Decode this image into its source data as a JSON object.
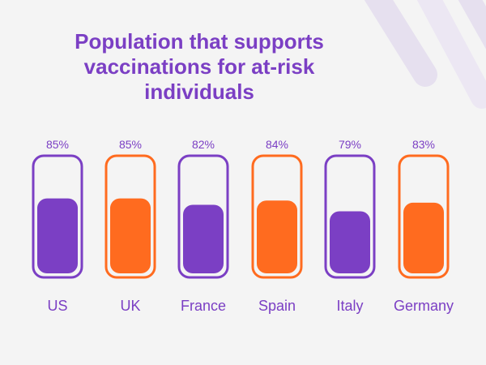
{
  "colors": {
    "background": "#f4f4f4",
    "purple": "#7b3fc4",
    "orange": "#ff6b1f",
    "decor": "#e6e0ef"
  },
  "chart_data": {
    "type": "bar",
    "title": "Population that supports vaccinations for at-risk individuals",
    "categories": [
      "US",
      "UK",
      "France",
      "Spain",
      "Italy",
      "Germany"
    ],
    "values": [
      85,
      85,
      82,
      84,
      79,
      83
    ],
    "value_labels": [
      "85%",
      "85%",
      "82%",
      "84%",
      "79%",
      "83%"
    ],
    "bar_colors": [
      "#7b3fc4",
      "#ff6b1f",
      "#7b3fc4",
      "#ff6b1f",
      "#7b3fc4",
      "#ff6b1f"
    ],
    "ylim": [
      0,
      100
    ],
    "grid": false,
    "legend": "none"
  }
}
